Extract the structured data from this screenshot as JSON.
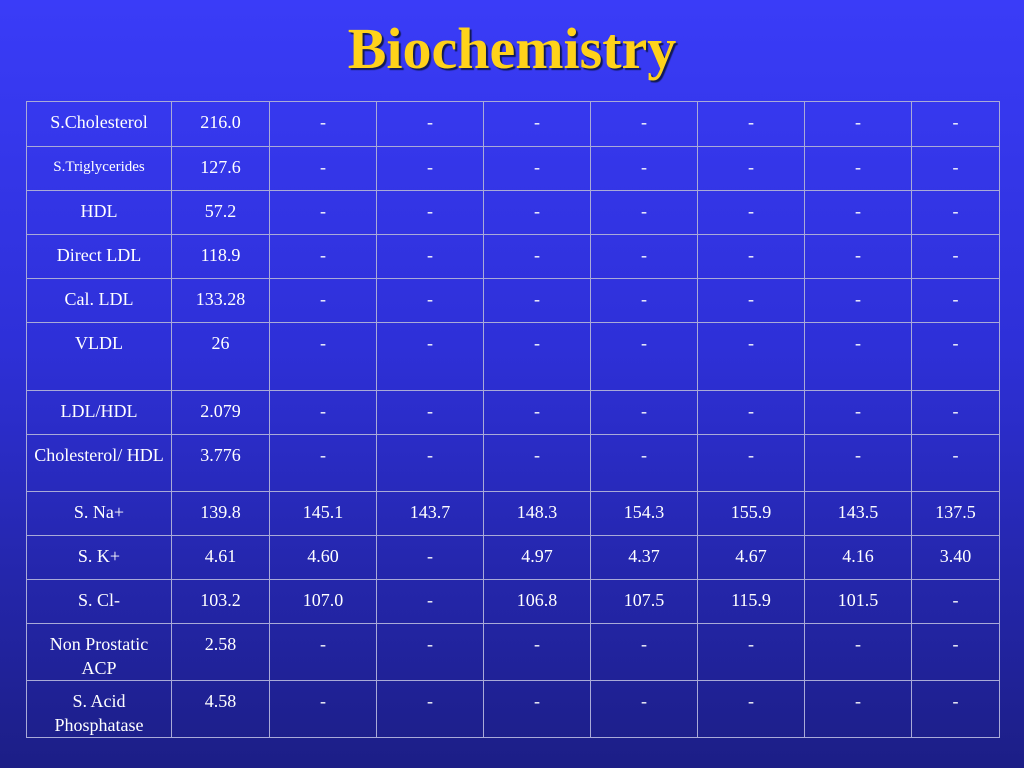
{
  "title": "Biochemistry",
  "rows": [
    {
      "label": "S.Cholesterol",
      "values": [
        "216.0",
        "-",
        "-",
        "-",
        "-",
        "-",
        "-",
        "-"
      ]
    },
    {
      "label": "S.Triglycerides",
      "values": [
        "127.6",
        "-",
        "-",
        "-",
        "-",
        "-",
        "-",
        "-"
      ]
    },
    {
      "label": "HDL",
      "values": [
        "57.2",
        "-",
        "-",
        "-",
        "-",
        "-",
        "-",
        "-"
      ]
    },
    {
      "label": "Direct LDL",
      "values": [
        "118.9",
        "-",
        "-",
        "-",
        "-",
        "-",
        "-",
        "-"
      ]
    },
    {
      "label": "Cal. LDL",
      "values": [
        "133.28",
        "-",
        "-",
        "-",
        "-",
        "-",
        "-",
        "-"
      ]
    },
    {
      "label": "VLDL",
      "values": [
        "26",
        "-",
        "-",
        "-",
        "-",
        "-",
        "-",
        "-"
      ]
    },
    {
      "label": "LDL/HDL",
      "values": [
        "2.079",
        "-",
        "-",
        "-",
        "-",
        "-",
        "-",
        "-"
      ]
    },
    {
      "label": "Cholesterol/ HDL",
      "values": [
        "3.776",
        "-",
        "-",
        "-",
        "-",
        "-",
        "-",
        "-"
      ]
    },
    {
      "label": "S. Na+",
      "values": [
        "139.8",
        "145.1",
        "143.7",
        "148.3",
        "154.3",
        "155.9",
        "143.5",
        "137.5"
      ]
    },
    {
      "label": "S. K+",
      "values": [
        "4.61",
        "4.60",
        "-",
        "4.97",
        "4.37",
        "4.67",
        "4.16",
        "3.40"
      ]
    },
    {
      "label": "S. Cl-",
      "values": [
        "103.2",
        "107.0",
        "-",
        "106.8",
        "107.5",
        "115.9",
        "101.5",
        "-"
      ]
    },
    {
      "label": "Non Prostatic ACP",
      "values": [
        "2.58",
        "-",
        "-",
        "-",
        "-",
        "-",
        "-",
        "-"
      ]
    },
    {
      "label": "S. Acid Phosphatase",
      "values": [
        "4.58",
        "-",
        "-",
        "-",
        "-",
        "-",
        "-",
        "-"
      ]
    }
  ]
}
